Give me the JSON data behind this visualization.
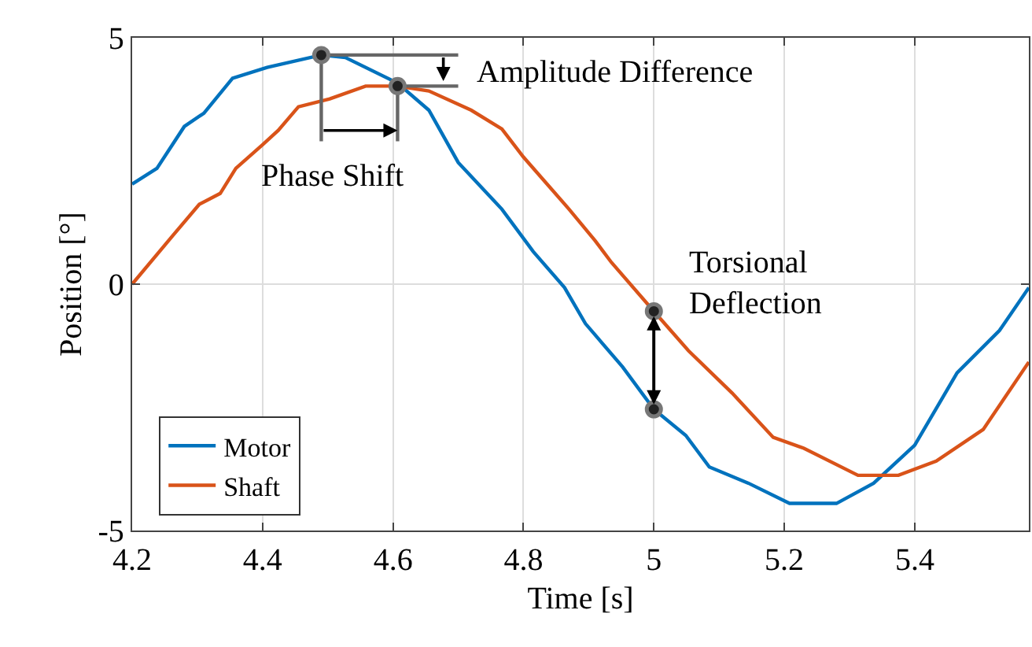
{
  "chart_data": {
    "type": "line",
    "xlabel": "Time [s]",
    "ylabel": "Position [°]",
    "xlim": [
      4.2,
      5.575
    ],
    "xticks": [
      4.2,
      4.4,
      4.6,
      4.8,
      5,
      5.2,
      5.4
    ],
    "ylim": [
      -5,
      5
    ],
    "yticks": [
      -5,
      0,
      5
    ],
    "grid": true,
    "legend": "bottom left",
    "marker": "none",
    "line_style": "solid",
    "series": [
      {
        "name": "Motor",
        "color": "#0072bd",
        "x": [
          4.2,
          4.238,
          4.28,
          4.31,
          4.354,
          4.407,
          4.49,
          4.527,
          4.607,
          4.655,
          4.7,
          4.767,
          4.815,
          4.863,
          4.895,
          4.952,
          5.0,
          5.049,
          5.085,
          5.145,
          5.208,
          5.28,
          5.337,
          5.4,
          5.465,
          5.53,
          5.575
        ],
        "values": [
          2.03,
          2.35,
          3.2,
          3.47,
          4.18,
          4.4,
          4.65,
          4.6,
          4.08,
          3.53,
          2.47,
          1.52,
          0.66,
          -0.07,
          -0.8,
          -1.68,
          -2.54,
          -3.07,
          -3.71,
          -4.04,
          -4.45,
          -4.45,
          -4.04,
          -3.27,
          -1.8,
          -0.94,
          -0.07
        ]
      },
      {
        "name": "Shaft",
        "color": "#d95319",
        "x": [
          4.2,
          4.262,
          4.303,
          4.335,
          4.359,
          4.4,
          4.424,
          4.455,
          4.503,
          4.558,
          4.606,
          4.655,
          4.72,
          4.767,
          4.8,
          4.87,
          4.91,
          4.935,
          5.0,
          5.053,
          5.12,
          5.183,
          5.23,
          5.313,
          5.375,
          5.433,
          5.505,
          5.575
        ],
        "values": [
          0.0,
          0.98,
          1.62,
          1.84,
          2.35,
          2.83,
          3.12,
          3.6,
          3.76,
          4.02,
          4.02,
          3.92,
          3.53,
          3.15,
          2.58,
          1.52,
          0.88,
          0.44,
          -0.55,
          -1.35,
          -2.21,
          -3.11,
          -3.33,
          -3.88,
          -3.88,
          -3.59,
          -2.95,
          -1.58
        ]
      },
      {
        "color": "#666666",
        "x": [
          4.49,
          4.49,
          4.7
        ],
        "values": [
          2.9,
          4.65,
          4.65
        ]
      },
      {
        "color": "#666666",
        "x": [
          4.607,
          4.607,
          4.7
        ],
        "values": [
          2.9,
          4.02,
          4.02
        ]
      },
      {
        "type": "scatter",
        "color": "#222222",
        "marker": "circle",
        "x": [
          4.49,
          4.607,
          5.0,
          5.0
        ],
        "values": [
          4.65,
          4.02,
          -0.55,
          -2.54
        ]
      }
    ],
    "annotations": [
      "Amplitude Difference",
      "Phase Shift",
      {
        "text": "Torsional\nDeflection",
        "x": 5.0,
        "y": -0.55
      }
    ]
  }
}
